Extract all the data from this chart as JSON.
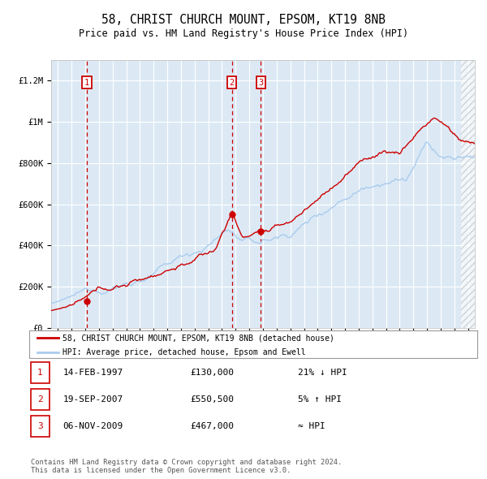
{
  "title": "58, CHRIST CHURCH MOUNT, EPSOM, KT19 8NB",
  "subtitle": "Price paid vs. HM Land Registry's House Price Index (HPI)",
  "title_fontsize": 10.5,
  "subtitle_fontsize": 8.5,
  "xlim": [
    1994.5,
    2025.5
  ],
  "ylim": [
    0,
    1300000
  ],
  "yticks": [
    0,
    200000,
    400000,
    600000,
    800000,
    1000000,
    1200000
  ],
  "ytick_labels": [
    "£0",
    "£200K",
    "£400K",
    "£600K",
    "£800K",
    "£1M",
    "£1.2M"
  ],
  "xticks": [
    1995,
    1996,
    1997,
    1998,
    1999,
    2000,
    2001,
    2002,
    2003,
    2004,
    2005,
    2006,
    2007,
    2008,
    2009,
    2010,
    2011,
    2012,
    2013,
    2014,
    2015,
    2016,
    2017,
    2018,
    2019,
    2020,
    2021,
    2022,
    2023,
    2024,
    2025
  ],
  "bg_color": "#dce9f5",
  "grid_color": "#ffffff",
  "hpi_color": "#aaccee",
  "price_color": "#cc0000",
  "sale_dot_color": "#cc0000",
  "vline_color": "#cc0000",
  "label_box_color": "#cc0000",
  "label_text_color": "#cc0000",
  "sale1_x": 1997.12,
  "sale1_y": 130000,
  "sale1_label": "1",
  "sale2_x": 2007.72,
  "sale2_y": 550500,
  "sale2_label": "2",
  "sale3_x": 2009.85,
  "sale3_y": 467000,
  "sale3_label": "3",
  "legend_red_label": "58, CHRIST CHURCH MOUNT, EPSOM, KT19 8NB (detached house)",
  "legend_blue_label": "HPI: Average price, detached house, Epsom and Ewell",
  "table_rows": [
    {
      "num": "1",
      "date": "14-FEB-1997",
      "price": "£130,000",
      "hpi": "21% ↓ HPI"
    },
    {
      "num": "2",
      "date": "19-SEP-2007",
      "price": "£550,500",
      "hpi": "5% ↑ HPI"
    },
    {
      "num": "3",
      "date": "06-NOV-2009",
      "price": "£467,000",
      "hpi": "≈ HPI"
    }
  ],
  "footer": "Contains HM Land Registry data © Crown copyright and database right 2024.\nThis data is licensed under the Open Government Licence v3.0."
}
